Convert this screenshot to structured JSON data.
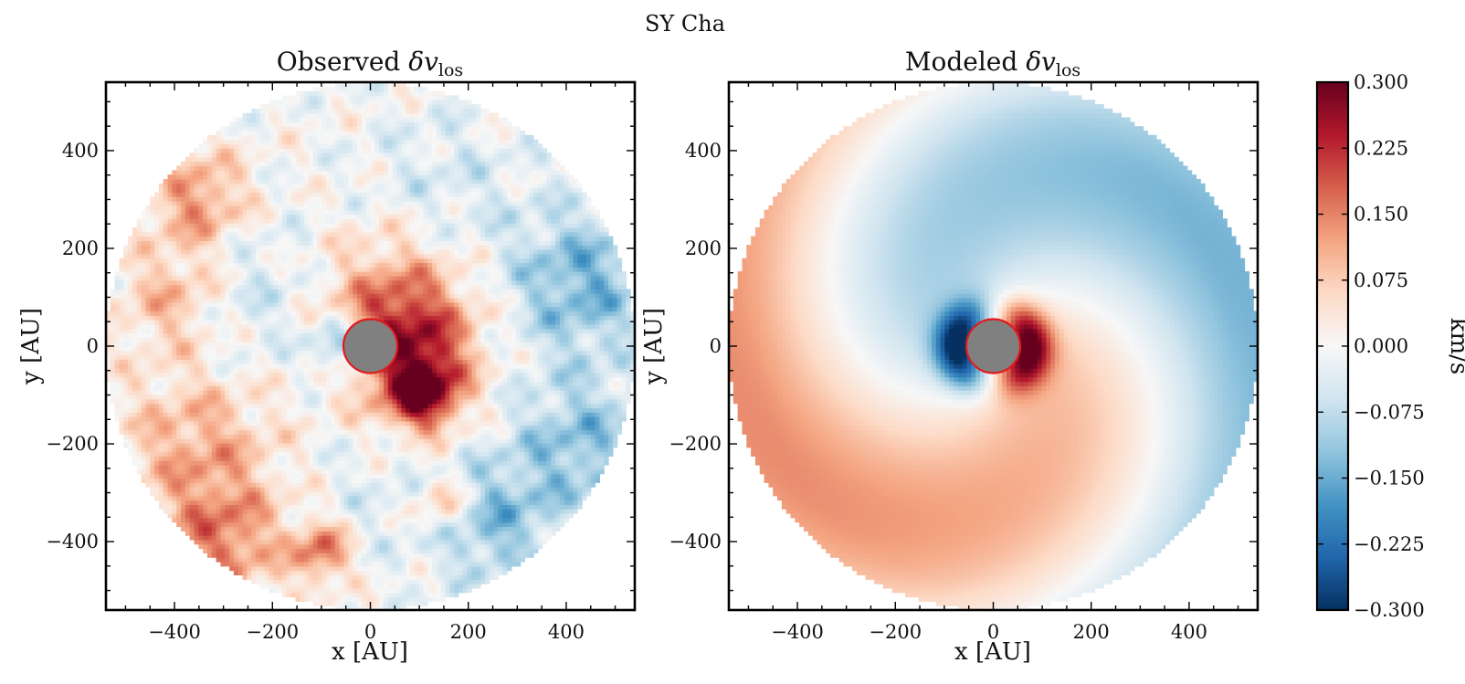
{
  "figure": {
    "suptitle": "SY Cha"
  },
  "chart_data": [
    {
      "type": "heatmap",
      "panel": "observed",
      "title": "Observed δv_los",
      "title_main": "Observed ",
      "title_symbol": "δv",
      "title_sub": "los",
      "xlabel": "x [AU]",
      "ylabel": "y [AU]",
      "xlim": [
        -540,
        540
      ],
      "ylim": [
        -540,
        540
      ],
      "xticks": [
        -400,
        -200,
        0,
        200,
        400
      ],
      "yticks": [
        -400,
        -200,
        0,
        200,
        400
      ],
      "xtick_labels": [
        "−400",
        "−200",
        "0",
        "200",
        "400"
      ],
      "ytick_labels": [
        "−400",
        "−200",
        "0",
        "200",
        "400"
      ],
      "disk_outer_radius_au": 540,
      "masked_center_radius_au": 55,
      "masked_center_color": "#808080",
      "masked_center_edge": "#e31a1c",
      "blobs": [
        {
          "x": 80,
          "y": 0,
          "r": 130,
          "v": 0.2
        },
        {
          "x": 110,
          "y": -100,
          "r": 70,
          "v": 0.24
        },
        {
          "x": 40,
          "y": 100,
          "r": 160,
          "v": 0.1
        },
        {
          "x": -60,
          "y": 0,
          "r": 60,
          "v": -0.17
        },
        {
          "x": -350,
          "y": 300,
          "r": 100,
          "v": 0.14
        },
        {
          "x": -400,
          "y": 100,
          "r": 110,
          "v": 0.11
        },
        {
          "x": -350,
          "y": -200,
          "r": 160,
          "v": 0.11
        },
        {
          "x": -300,
          "y": -400,
          "r": 120,
          "v": 0.14
        },
        {
          "x": 430,
          "y": 130,
          "r": 150,
          "v": -0.14
        },
        {
          "x": 430,
          "y": -200,
          "r": 140,
          "v": -0.12
        },
        {
          "x": 250,
          "y": -360,
          "r": 130,
          "v": -0.12
        },
        {
          "x": -250,
          "y": 100,
          "r": 170,
          "v": -0.06
        },
        {
          "x": 150,
          "y": 320,
          "r": 170,
          "v": -0.05
        },
        {
          "x": 0,
          "y": -300,
          "r": 150,
          "v": -0.03
        },
        {
          "x": 150,
          "y": -320,
          "r": 60,
          "v": 0.12
        },
        {
          "x": -100,
          "y": -420,
          "r": 60,
          "v": 0.17
        }
      ]
    },
    {
      "type": "heatmap",
      "panel": "modeled",
      "title": "Modeled δv_los",
      "title_main": "Modeled ",
      "title_symbol": "δv",
      "title_sub": "los",
      "xlabel": "x [AU]",
      "ylabel": "y [AU]",
      "xlim": [
        -540,
        540
      ],
      "ylim": [
        -540,
        540
      ],
      "xticks": [
        -400,
        -200,
        0,
        200,
        400
      ],
      "yticks": [
        -400,
        -200,
        0,
        200,
        400
      ],
      "xtick_labels": [
        "−400",
        "−200",
        "0",
        "200",
        "400"
      ],
      "ytick_labels": [
        "−400",
        "−200",
        "0",
        "200",
        "400"
      ],
      "disk_outer_radius_au": 540,
      "masked_center_radius_au": 55,
      "masked_center_color": "#808080",
      "masked_center_edge": "#e31a1c",
      "model": {
        "outer_amplitude": 0.13,
        "inner_amplitude": 0.27,
        "inner_scale_au": 45,
        "spiral_phase_per_au": 0.0055
      }
    }
  ],
  "colorbar": {
    "label": "km/s",
    "vmin": -0.3,
    "vmax": 0.3,
    "ticks": [
      0.3,
      0.225,
      0.15,
      0.075,
      0.0,
      -0.075,
      -0.15,
      -0.225,
      -0.3
    ],
    "tick_labels": [
      "0.300",
      "0.225",
      "0.150",
      "0.075",
      "0.000",
      "−0.075",
      "−0.150",
      "−0.225",
      "−0.300"
    ],
    "colormap": "RdBu_r",
    "colormap_stops": [
      "#053061",
      "#2166ac",
      "#4393c3",
      "#92c5de",
      "#d1e5f0",
      "#f7f7f7",
      "#fddbc7",
      "#f4a582",
      "#d6604d",
      "#b2182b",
      "#67001f"
    ]
  }
}
